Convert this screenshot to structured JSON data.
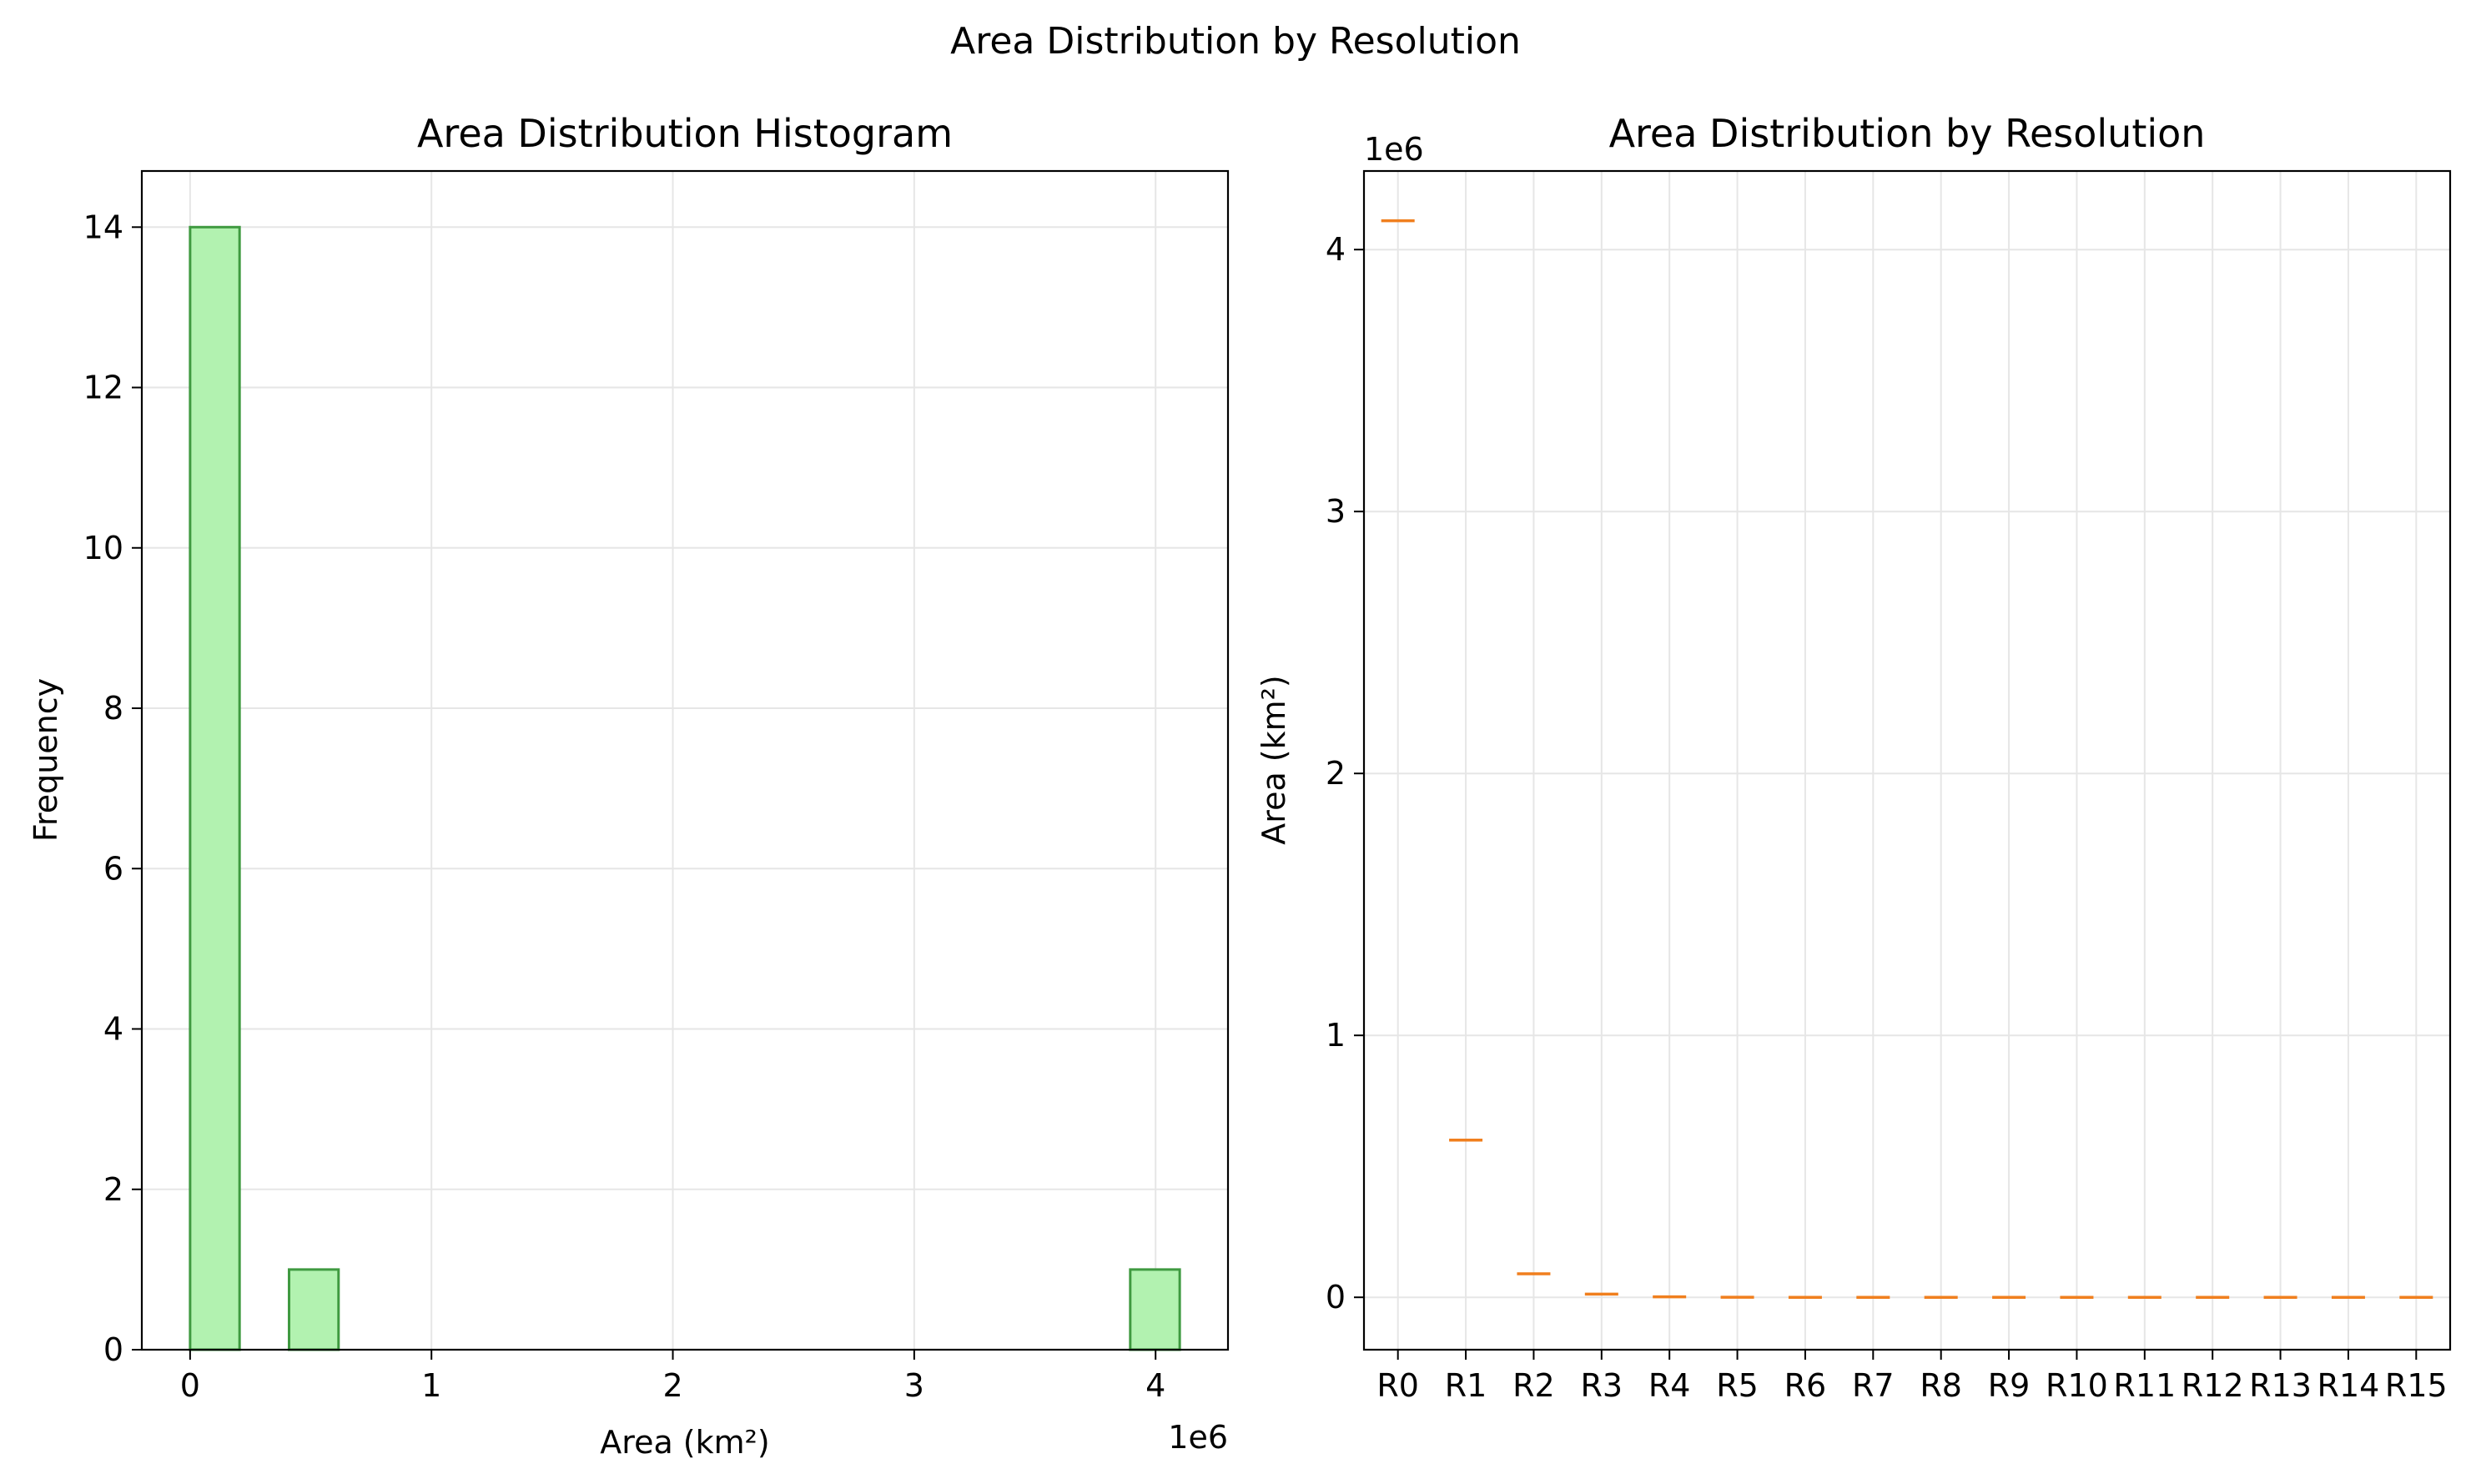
{
  "figure_title": "Area Distribution by Resolution",
  "chart_data": [
    {
      "type": "bar",
      "subtype": "histogram",
      "title": "Area Distribution Histogram",
      "xlabel": "Area (km²)",
      "ylabel": "Frequency",
      "x_offset_label": "1e6",
      "xlim": [
        -0.2,
        4.3
      ],
      "ylim": [
        0,
        14.7
      ],
      "xticks": [
        0,
        1,
        2,
        3,
        4
      ],
      "yticks": [
        0,
        2,
        4,
        6,
        8,
        10,
        12,
        14
      ],
      "grid": true,
      "bin_edges": [
        0.0,
        0.205,
        0.41,
        0.615,
        0.82,
        1.025,
        1.23,
        1.435,
        1.64,
        1.845,
        2.05,
        2.255,
        2.46,
        2.665,
        2.87,
        3.075,
        3.28,
        3.485,
        3.69,
        3.895,
        4.1
      ],
      "counts": [
        14,
        0,
        1,
        0,
        0,
        0,
        0,
        0,
        0,
        0,
        0,
        0,
        0,
        0,
        0,
        0,
        0,
        0,
        0,
        1
      ],
      "colors": {
        "fill": "#b2f2b0",
        "edge": "#3f9a40"
      }
    },
    {
      "type": "box",
      "title": "Area Distribution by Resolution",
      "xlabel": "",
      "ylabel": "Area (km²)",
      "y_offset_label": "1e6",
      "ylim": [
        -0.2,
        4.3
      ],
      "yticks": [
        0,
        1,
        2,
        3,
        4
      ],
      "grid": true,
      "categories": [
        "R0",
        "R1",
        "R2",
        "R3",
        "R4",
        "R5",
        "R6",
        "R7",
        "R8",
        "R9",
        "R10",
        "R11",
        "R12",
        "R13",
        "R14",
        "R15"
      ],
      "values": [
        4.11,
        0.6,
        0.09,
        0.012,
        0.002,
        0.0003,
        4e-05,
        5e-06,
        7e-07,
        1e-07,
        0,
        0,
        0,
        0,
        0,
        0
      ],
      "colors": {
        "median": "#f07f1e"
      }
    }
  ]
}
